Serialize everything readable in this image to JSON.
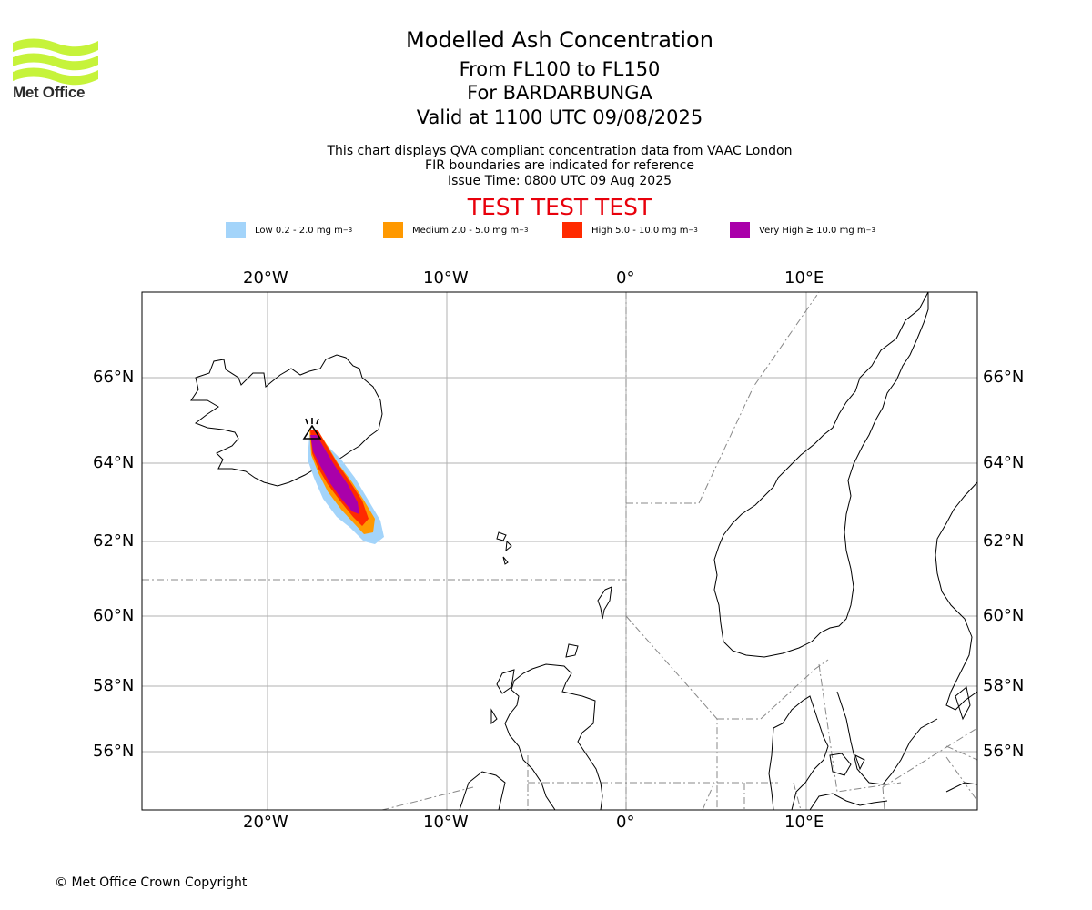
{
  "brand": {
    "name": "Met Office",
    "logo_color": "#c6f33a"
  },
  "title": "Modelled Ash Concentration",
  "subtitle_levels": "From FL100 to FL150",
  "subtitle_volcano": "For BARDARBUNGA",
  "subtitle_valid": "Valid at 1100 UTC 09/08/2025",
  "notes": {
    "line1": "This chart displays QVA compliant concentration data from VAAC London",
    "line2": "FIR boundaries are indicated for reference",
    "line3": "Issue Time: 0800 UTC 09 Aug 2025"
  },
  "test_banner": "TEST TEST TEST",
  "legend": [
    {
      "label": "Low 0.2 - 2.0 mg m",
      "sup": "−3",
      "color": "#a3d4fa"
    },
    {
      "label": "Medium 2.0 - 5.0 mg m",
      "sup": "−3",
      "color": "#ff9900"
    },
    {
      "label": "High 5.0 - 10.0 mg m",
      "sup": "−3",
      "color": "#ff2a00"
    },
    {
      "label": "Very High ≥ 10.0 mg m",
      "sup": "−3",
      "color": "#aa00aa"
    }
  ],
  "map": {
    "lon_labels": [
      "20°W",
      "10°W",
      "0°",
      "10°E"
    ],
    "lat_labels": [
      "66°N",
      "64°N",
      "62°N",
      "60°N",
      "58°N",
      "56°N"
    ],
    "volcano_marker": "triangle-volcano-icon"
  },
  "copyright": "© Met Office Crown Copyright"
}
